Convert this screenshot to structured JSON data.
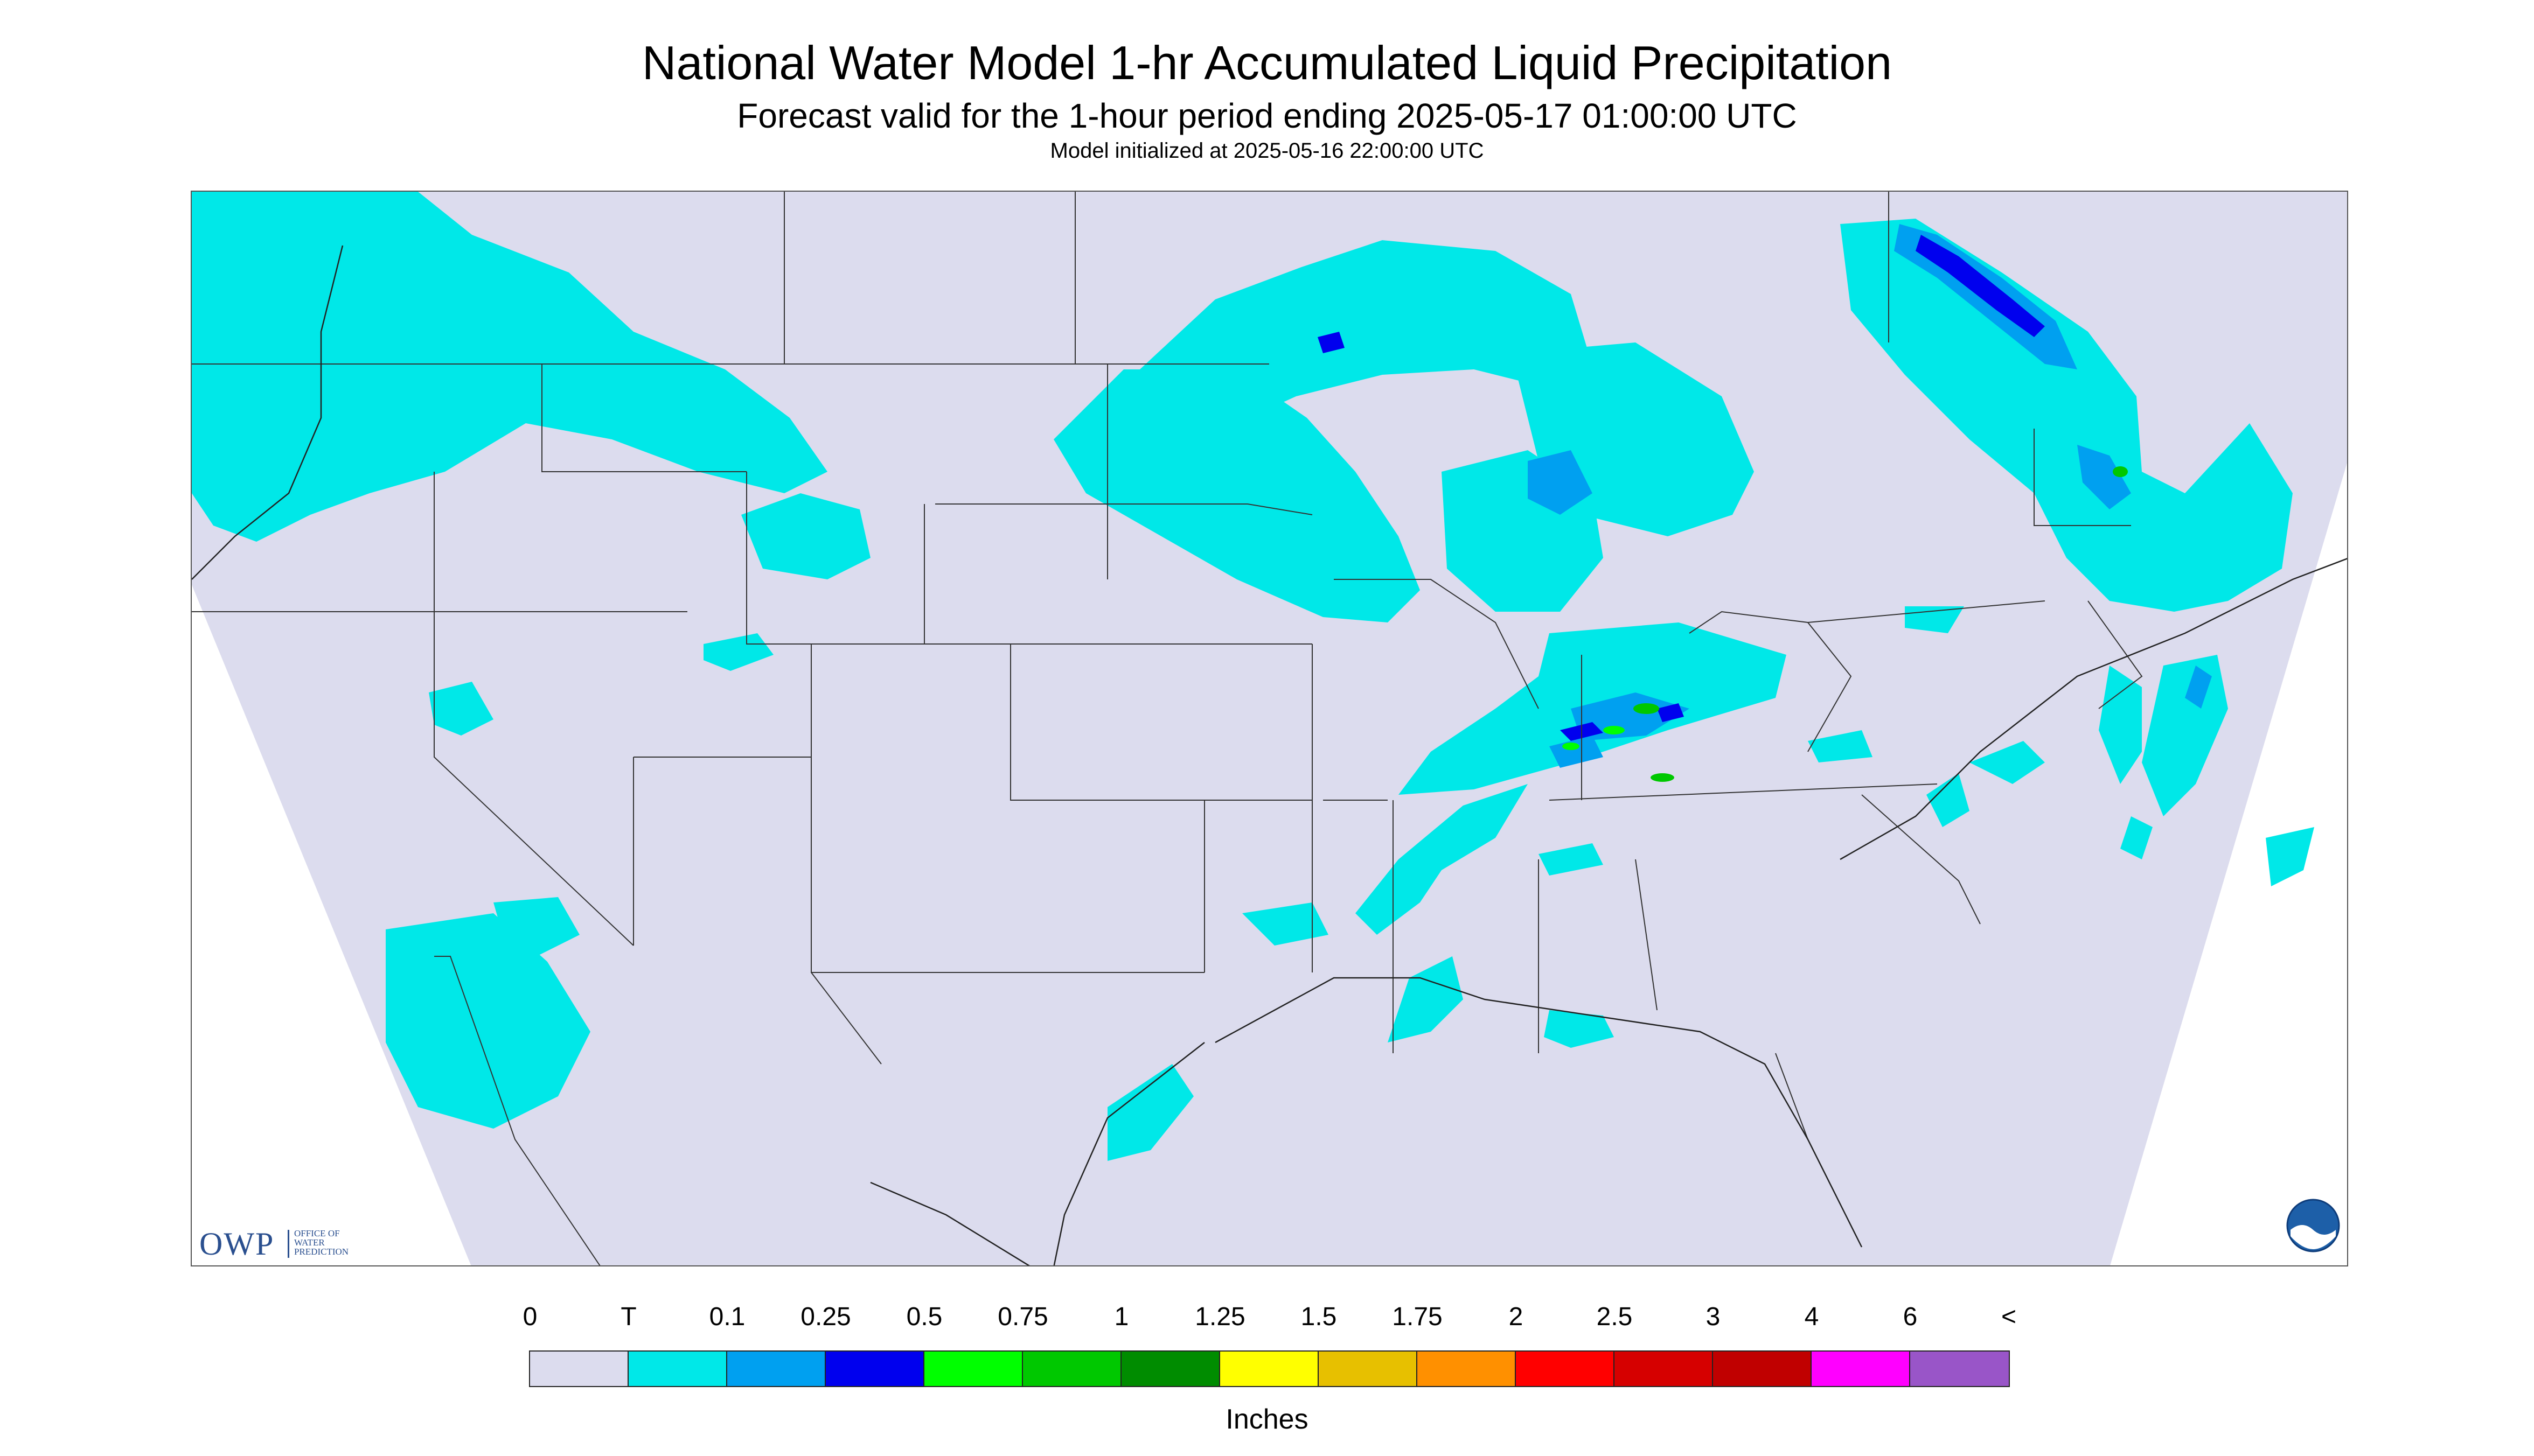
{
  "header": {
    "title": "National Water Model 1-hr Accumulated Liquid Precipitation",
    "subtitle": "Forecast valid for the 1-hour period ending 2025-05-17 01:00:00 UTC",
    "init": "Model initialized at 2025-05-16 22:00:00 UTC"
  },
  "logos": {
    "owp_main": "OWP",
    "owp_sub": "OFFICE OF WATER PREDICTION",
    "noaa": "NOAA"
  },
  "map": {
    "domain_fill": "#dcdcee",
    "outside_fill": "#ffffff",
    "boundary_color": "#333333"
  },
  "legend": {
    "units": "Inches",
    "labels": [
      "0",
      "T",
      "0.1",
      "0.25",
      "0.5",
      "0.75",
      "1",
      "1.25",
      "1.5",
      "1.75",
      "2",
      "2.5",
      "3",
      "4",
      "6",
      "<"
    ],
    "colors": [
      "#dcdcee",
      "#00e8e8",
      "#00a0f0",
      "#0000ee",
      "#00ff00",
      "#00c800",
      "#008c00",
      "#ffff00",
      "#e7c000",
      "#ff9000",
      "#ff0000",
      "#d60000",
      "#c00000",
      "#ff00ff",
      "#9955c8"
    ]
  }
}
